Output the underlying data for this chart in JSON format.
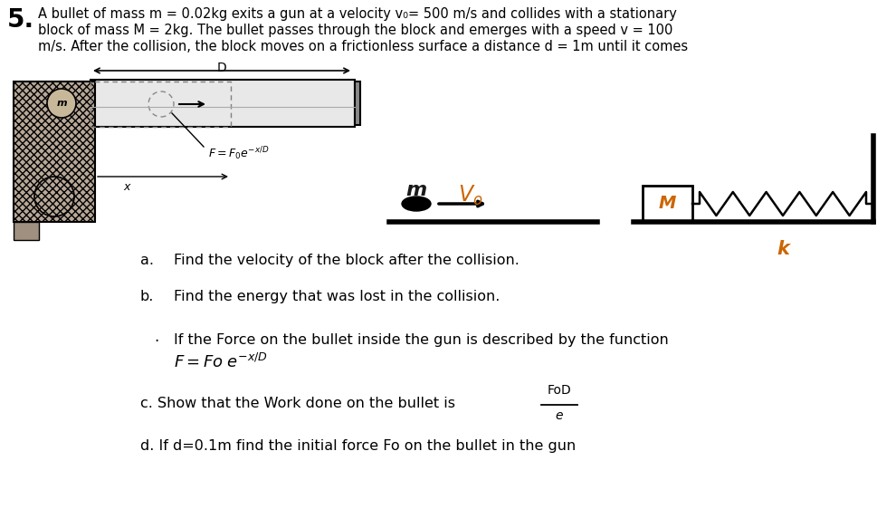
{
  "bg_color": "#ffffff",
  "title_number": "5.",
  "line1": "A bullet of mass m = 0.02kg exits a gun at a velocity v₀= 500 m/s and collides with a stationary",
  "line2": "block of mass M = 2kg. The bullet passes through the block and emerges with a speed v = 100",
  "line3": "m/s. After the collision, the block moves on a frictionless surface a distance d = 1m until it comes",
  "part_a_label": "a.",
  "part_a_text": "Find the velocity of the block after the collision.",
  "part_b_label": "b.",
  "part_b_text": "Find the energy that was lost in the collision.",
  "dash": "·",
  "bullet_intro": "If the Force on the bullet inside the gun is described by the function",
  "part_c_text": "c. Show that the Work done on the bullet is ",
  "frac_num": "FoD",
  "frac_den": "e",
  "part_d_text": "d. If d=0.1m find the initial force Fo on the bullet in the gun",
  "gun_label_D": "D",
  "gun_label_m": "m",
  "gun_label_x": "x",
  "gun_force_label": "$F=F_0e^{-x/D}$",
  "block_label_M": "M",
  "spring_label_k": "k",
  "bullet_label_m": "m",
  "vel_label": "$V_o$",
  "gun_barrel_color": "#e8e8e8",
  "gun_handle_color": "#b8a898",
  "gun_handle_hatch": "xxxx",
  "block_color": "#ffffff",
  "text_color": "#000000",
  "m_color": "#1a1a1a",
  "Vo_color": "#cc6600",
  "M_color": "#cc6600",
  "k_color": "#cc6600"
}
